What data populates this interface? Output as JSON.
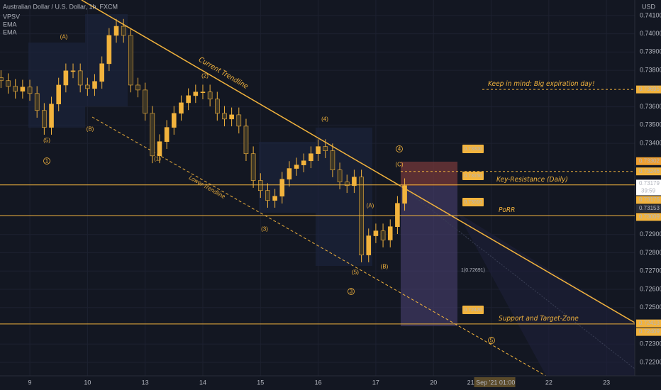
{
  "header": {
    "symbol": "Australian Dollar / U.S. Dollar, 1h, FXCM",
    "indicators": [
      "VPSV",
      "EMA",
      "EMA"
    ],
    "currency": "USD"
  },
  "chart_data": {
    "type": "candlestick",
    "x": [
      -0.5,
      -0.375,
      -0.25,
      -0.125,
      0,
      0.125,
      0.25,
      0.375,
      0.5,
      0.625,
      0.75,
      0.875,
      1,
      1.125,
      1.25,
      1.375,
      1.5,
      1.625,
      1.75,
      1.875,
      2,
      2.125,
      2.25,
      2.375,
      2.5,
      2.625,
      2.75,
      2.875,
      3,
      3.125,
      3.25,
      3.375,
      3.5,
      3.625,
      3.75,
      3.875,
      4,
      4.125,
      4.25,
      4.375,
      4.5,
      4.625,
      4.75,
      4.875,
      5,
      5.125,
      5.25,
      5.375,
      5.5,
      5.625,
      5.75,
      5.875,
      6,
      6.125,
      6.25,
      6.375,
      6.5
    ],
    "open": [
      0.7376,
      0.73743,
      0.73712,
      0.73685,
      0.73708,
      0.73673,
      0.7358,
      0.73487,
      0.73615,
      0.73719,
      0.73797,
      0.73797,
      0.73719,
      0.737,
      0.73739,
      0.73836,
      0.73991,
      0.74041,
      0.73991,
      0.73719,
      0.73692,
      0.73564,
      0.73331,
      0.73409,
      0.73487,
      0.73564,
      0.73622,
      0.73661,
      0.73681,
      0.73681,
      0.73642,
      0.73564,
      0.73533,
      0.73556,
      0.73494,
      0.73343,
      0.73196,
      0.73141,
      0.73087,
      0.7311,
      0.73203,
      0.73262,
      0.73281,
      0.73304,
      0.73343,
      0.73382,
      0.73359,
      0.73254,
      0.73188,
      0.73168,
      0.73215,
      0.72788,
      0.72893,
      0.7292,
      0.7287,
      0.72943,
      0.73071
    ],
    "high": [
      0.738,
      0.73783,
      0.73752,
      0.73748,
      0.73748,
      0.73713,
      0.7362,
      0.73655,
      0.73759,
      0.73837,
      0.73837,
      0.73837,
      0.73759,
      0.73779,
      0.73876,
      0.74031,
      0.74081,
      0.74081,
      0.74031,
      0.73759,
      0.73732,
      0.73604,
      0.73449,
      0.73527,
      0.73604,
      0.73662,
      0.73701,
      0.73721,
      0.73721,
      0.73721,
      0.73682,
      0.73604,
      0.73596,
      0.73596,
      0.73534,
      0.73383,
      0.73236,
      0.73181,
      0.7315,
      0.73243,
      0.73302,
      0.73321,
      0.73344,
      0.73383,
      0.73422,
      0.73422,
      0.73399,
      0.73294,
      0.73228,
      0.73255,
      0.73255,
      0.72933,
      0.7296,
      0.7296,
      0.72983,
      0.73111,
      0.73208
    ],
    "low": [
      0.73703,
      0.73672,
      0.73645,
      0.73645,
      0.73633,
      0.7354,
      0.73447,
      0.73447,
      0.73575,
      0.73679,
      0.73757,
      0.73679,
      0.7366,
      0.7366,
      0.73699,
      0.73796,
      0.73951,
      0.73951,
      0.73679,
      0.73652,
      0.73524,
      0.73291,
      0.73291,
      0.73369,
      0.73447,
      0.73524,
      0.73582,
      0.73621,
      0.73641,
      0.73602,
      0.73524,
      0.73493,
      0.73493,
      0.73454,
      0.73303,
      0.73156,
      0.73101,
      0.73047,
      0.73047,
      0.7307,
      0.73163,
      0.73222,
      0.73241,
      0.73264,
      0.73303,
      0.73319,
      0.73214,
      0.73148,
      0.73128,
      0.73128,
      0.72748,
      0.72748,
      0.72853,
      0.7283,
      0.7283,
      0.72903,
      0.73031
    ],
    "close": [
      0.73743,
      0.73712,
      0.73685,
      0.73708,
      0.73673,
      0.7358,
      0.73487,
      0.73615,
      0.73719,
      0.73797,
      0.73797,
      0.73719,
      0.737,
      0.73739,
      0.73836,
      0.73991,
      0.74041,
      0.73991,
      0.73719,
      0.73692,
      0.73564,
      0.73331,
      0.73409,
      0.73487,
      0.73564,
      0.73622,
      0.73661,
      0.73681,
      0.73681,
      0.73642,
      0.73564,
      0.73533,
      0.73556,
      0.73494,
      0.73343,
      0.73196,
      0.73141,
      0.73087,
      0.7311,
      0.73203,
      0.73262,
      0.73281,
      0.73304,
      0.73343,
      0.73382,
      0.73359,
      0.73254,
      0.73188,
      0.73168,
      0.73215,
      0.72788,
      0.72893,
      0.7292,
      0.7287,
      0.72943,
      0.73071,
      0.73168
    ],
    "up_color": "#f2b33d",
    "down_color": "#3b3526",
    "xlim": [
      -0.517,
      10.49
    ],
    "ylim": [
      0.72126,
      0.74185
    ],
    "xticks": [
      {
        "value": 0,
        "label": "9"
      },
      {
        "value": 1,
        "label": "10"
      },
      {
        "value": 2,
        "label": "13"
      },
      {
        "value": 3,
        "label": "14"
      },
      {
        "value": 4,
        "label": "15"
      },
      {
        "value": 5,
        "label": "16"
      },
      {
        "value": 6,
        "label": "17"
      },
      {
        "value": 7,
        "label": "20"
      },
      {
        "value": 8,
        "label": "21 Sep '21   01:00"
      },
      {
        "value": 9,
        "label": "22"
      },
      {
        "value": 10,
        "label": "23"
      }
    ],
    "yticks": [
      {
        "value": 0.741,
        "label": "0.74100"
      },
      {
        "value": 0.74,
        "label": "0.74000"
      },
      {
        "value": 0.739,
        "label": "0.73900"
      },
      {
        "value": 0.738,
        "label": "0.73800"
      },
      {
        "value": 0.736,
        "label": "0.73600"
      },
      {
        "value": 0.735,
        "label": "0.73500"
      },
      {
        "value": 0.734,
        "label": "0.73400"
      },
      {
        "value": 0.729,
        "label": "0.72900"
      },
      {
        "value": 0.728,
        "label": "0.72800"
      },
      {
        "value": 0.727,
        "label": "0.72700"
      },
      {
        "value": 0.726,
        "label": "0.72600"
      },
      {
        "value": 0.725,
        "label": "0.72500"
      },
      {
        "value": 0.723,
        "label": "0.72300"
      },
      {
        "value": 0.722,
        "label": "0.72200"
      }
    ],
    "price_labels": [
      {
        "value": 0.73695,
        "label": "0.73695",
        "color": "#f2b33d"
      },
      {
        "value": 0.73302,
        "label": "0.73302",
        "color": "#f0a030"
      },
      {
        "value": 0.73246,
        "label": "0.73246",
        "color": "#f2b33d"
      },
      {
        "value": 0.73179,
        "label": "0.73179",
        "color": "#ffffff"
      },
      {
        "value": 0.73175,
        "label": "0.73175",
        "color": "#f2b33d"
      },
      {
        "value": 0.73153,
        "label": "0.73153",
        "color": "#2a2e39"
      },
      {
        "value": 0.73009,
        "label": "0.73009",
        "color": "#f2b33d"
      },
      {
        "value": 0.72413,
        "label": "0.72413",
        "color": "#f2b33d"
      },
      {
        "value": 0.72409,
        "label": "0.72409",
        "color": "#f2b33d"
      }
    ],
    "countdown": "39:59",
    "levels": [
      {
        "value": 0.73695,
        "label": "Keep in mind: Big expiration day!",
        "style": "dashed"
      },
      {
        "value": 0.73246,
        "style": "dashed"
      },
      {
        "value": 0.73172,
        "label": "Key-Resistance (Daily)",
        "style": "solid"
      },
      {
        "value": 0.73004,
        "label": "PoRR",
        "style": "solid"
      },
      {
        "value": 0.7241,
        "label": "Support and Target-Zone",
        "style": "solid"
      }
    ],
    "trendline_labels": [
      "Current Trendline",
      "Lower Trendline"
    ],
    "wave_labels": [
      "(A)",
      "(B)",
      "(5)",
      "1",
      "(1)",
      "(2)",
      "(3)",
      "(4)",
      "4",
      "(C)",
      "(A)",
      "(5)",
      "(B)",
      "3",
      "5"
    ],
    "fib_label": "1(0.72691)",
    "tags": [
      "0.73300",
      "0.73150",
      "0.73010",
      "0.72420"
    ]
  }
}
